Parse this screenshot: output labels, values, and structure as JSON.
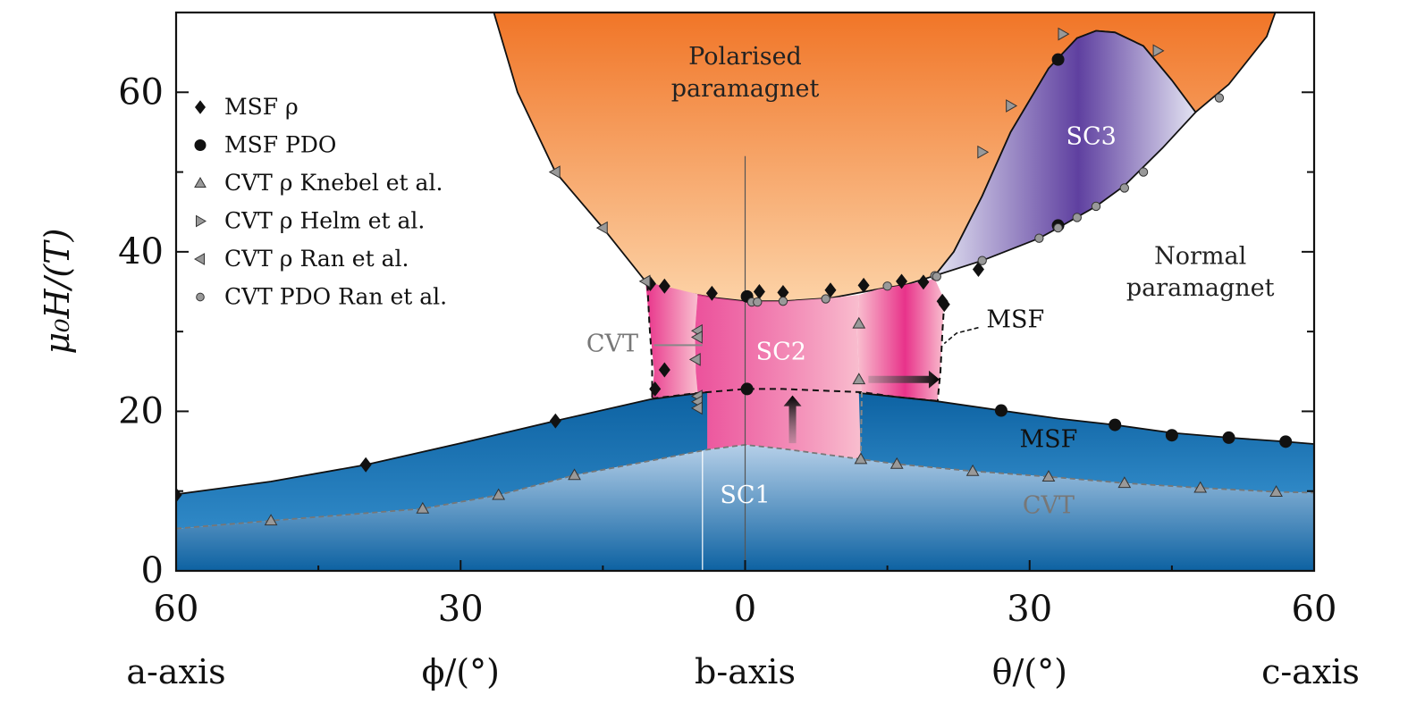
{
  "chart_data": {
    "type": "scatter",
    "title": "",
    "ylabel": "μ₀H/(T)",
    "ylim": [
      0,
      70
    ],
    "yticks": [
      "0",
      "20",
      "40",
      "60"
    ],
    "xticks": [
      "60",
      "30",
      "0",
      "30",
      "60"
    ],
    "x_panels": [
      {
        "range": [
          60,
          0
        ],
        "label": "ϕ/(°)"
      },
      {
        "range": [
          0,
          60
        ],
        "label": "θ/(°)"
      }
    ],
    "x_captions": [
      "a-axis",
      "ϕ/(°)",
      "b-axis",
      "θ/(°)",
      "c-axis"
    ],
    "region_labels": {
      "polarised": [
        "Polarised",
        "paramagnet"
      ],
      "normal": [
        "Normal",
        "paramagnet"
      ],
      "sc1": "SC1",
      "sc2": "SC2",
      "sc3": "SC3",
      "msf_band": "MSF",
      "cvt_band": "CVT",
      "msf_side": "MSF",
      "cvt_side": "CVT"
    },
    "legend_position": "upper-left",
    "legend": [
      {
        "label": "MSF ρ",
        "marker": "diamond"
      },
      {
        "label": "MSF PDO",
        "marker": "circle"
      },
      {
        "label": "CVT ρ Knebel et al.",
        "marker": "triangle-up"
      },
      {
        "label": "CVT ρ Helm et al.",
        "marker": "triangle-right"
      },
      {
        "label": "CVT ρ Ran et al.",
        "marker": "triangle-left"
      },
      {
        "label": "CVT PDO Ran et al.",
        "marker": "circle-small"
      }
    ],
    "colors": {
      "orange_top": "#f07020",
      "orange_bottom": "#fcd2a6",
      "pink_edge": "#e8338a",
      "pink_light": "#f9bfcf",
      "blue_dark": "#0d62a2",
      "blue_light": "#b5cfe8",
      "purple_dark": "#5f40a0",
      "purple_light": "#e3e3f2",
      "marker_gray": "#999999"
    },
    "series": [
      {
        "name": "MSF ρ",
        "marker": "diamond",
        "points": [
          {
            "x": -60,
            "y": 9.5
          },
          {
            "x": -40,
            "y": 13.3
          },
          {
            "x": -20,
            "y": 18.8
          },
          {
            "x": -9.5,
            "y": 22.8
          },
          {
            "x": -8.5,
            "y": 25.2
          },
          {
            "x": -10,
            "y": 36
          },
          {
            "x": -8.5,
            "y": 35.7
          },
          {
            "x": -3.5,
            "y": 34.8
          },
          {
            "x": 1.5,
            "y": 35
          },
          {
            "x": 4,
            "y": 34.9
          },
          {
            "x": 9,
            "y": 35.2
          },
          {
            "x": 12.5,
            "y": 35.8
          },
          {
            "x": 16.5,
            "y": 36.3
          },
          {
            "x": 18.8,
            "y": 36.2
          },
          {
            "x": 20.8,
            "y": 33.8
          },
          {
            "x": 21,
            "y": 33.4
          },
          {
            "x": 24.6,
            "y": 37.8
          }
        ]
      },
      {
        "name": "MSF PDO",
        "marker": "circle",
        "points": [
          {
            "x": 0.2,
            "y": 34.4
          },
          {
            "x": 0.2,
            "y": 22.8
          },
          {
            "x": 27,
            "y": 20.1
          },
          {
            "x": 39,
            "y": 18.3
          },
          {
            "x": 45,
            "y": 17
          },
          {
            "x": 51,
            "y": 16.7
          },
          {
            "x": 57,
            "y": 16.2
          },
          {
            "x": 33,
            "y": 64.1
          },
          {
            "x": 33,
            "y": 43.3
          }
        ]
      },
      {
        "name": "CVT ρ Knebel et al.",
        "marker": "triangle-up",
        "points": [
          {
            "x": -50,
            "y": 6.3
          },
          {
            "x": -34,
            "y": 7.8
          },
          {
            "x": -26,
            "y": 9.5
          },
          {
            "x": -18,
            "y": 12
          },
          {
            "x": 12.2,
            "y": 14
          },
          {
            "x": 16,
            "y": 13.4
          },
          {
            "x": 24,
            "y": 12.5
          },
          {
            "x": 32,
            "y": 11.8
          },
          {
            "x": 40,
            "y": 11
          },
          {
            "x": 48,
            "y": 10.4
          },
          {
            "x": 56,
            "y": 9.9
          },
          {
            "x": 12,
            "y": 31
          },
          {
            "x": 12,
            "y": 24
          }
        ]
      },
      {
        "name": "CVT ρ Helm et al.",
        "marker": "triangle-right",
        "points": [
          {
            "x": 25,
            "y": 52.5
          },
          {
            "x": 28,
            "y": 58.3
          },
          {
            "x": 33.5,
            "y": 67.3
          },
          {
            "x": 43.5,
            "y": 65.2
          }
        ]
      },
      {
        "name": "CVT ρ Ran et al.",
        "marker": "triangle-left",
        "points": [
          {
            "x": -20,
            "y": 50
          },
          {
            "x": -15,
            "y": 43
          },
          {
            "x": -10.5,
            "y": 36.3
          },
          {
            "x": -5,
            "y": 30.1
          },
          {
            "x": -5,
            "y": 29.3
          },
          {
            "x": -5.2,
            "y": 26.5
          },
          {
            "x": -5,
            "y": 21.9
          },
          {
            "x": -5,
            "y": 21.2
          },
          {
            "x": -5,
            "y": 20.4
          }
        ]
      },
      {
        "name": "CVT PDO Ran et al.",
        "marker": "circle-small",
        "points": [
          {
            "x": 0.7,
            "y": 33.7
          },
          {
            "x": 1.3,
            "y": 33.7
          },
          {
            "x": 4,
            "y": 33.8
          },
          {
            "x": 8.5,
            "y": 34.1
          },
          {
            "x": 15,
            "y": 35.7
          },
          {
            "x": 20,
            "y": 37
          },
          {
            "x": 20.2,
            "y": 36.9
          },
          {
            "x": 25,
            "y": 38.9
          },
          {
            "x": 31,
            "y": 41.7
          },
          {
            "x": 33,
            "y": 43
          },
          {
            "x": 35,
            "y": 44.3
          },
          {
            "x": 37,
            "y": 45.7
          },
          {
            "x": 40,
            "y": 48
          },
          {
            "x": 42,
            "y": 50
          },
          {
            "x": 50,
            "y": 59.3
          }
        ]
      }
    ]
  }
}
